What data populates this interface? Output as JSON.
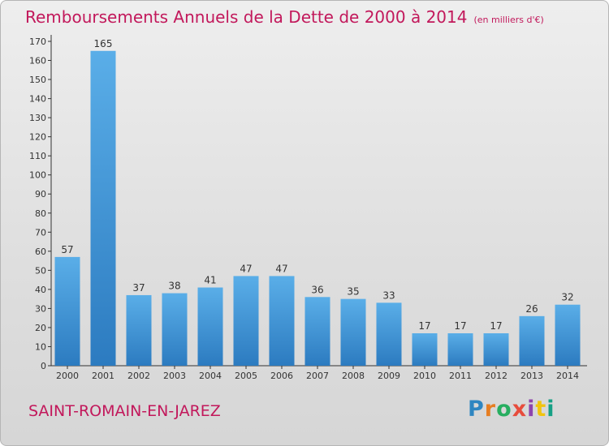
{
  "header": {
    "title": "Remboursements Annuels de la Dette de 2000 à 2014",
    "unit": "(en milliers d'€)"
  },
  "footer": {
    "commune": "SAINT-ROMAIN-EN-JAREZ",
    "logo_text": "Proxiti"
  },
  "colors": {
    "bar_top": "#5aaee8",
    "bar_bottom": "#2c7bc0",
    "title": "#c2185b",
    "logo": [
      "#2e86c1",
      "#e67e22",
      "#27ae60",
      "#e74c3c",
      "#8e44ad",
      "#f1c40f",
      "#16a085"
    ]
  },
  "chart_data": {
    "type": "bar",
    "title": "Remboursements Annuels de la Dette de 2000 à 2014",
    "subtitle": "(en milliers d'€)",
    "xlabel": "",
    "ylabel": "",
    "categories": [
      "2000",
      "2001",
      "2002",
      "2003",
      "2004",
      "2005",
      "2006",
      "2007",
      "2008",
      "2009",
      "2010",
      "2011",
      "2012",
      "2013",
      "2014"
    ],
    "values": [
      57,
      165,
      37,
      38,
      41,
      47,
      47,
      36,
      35,
      33,
      17,
      17,
      17,
      26,
      32
    ],
    "ylim": [
      0,
      170
    ],
    "yticks": [
      0,
      10,
      20,
      30,
      40,
      50,
      60,
      70,
      80,
      90,
      100,
      110,
      120,
      130,
      140,
      150,
      160,
      170
    ],
    "grid": false,
    "legend": "none"
  }
}
